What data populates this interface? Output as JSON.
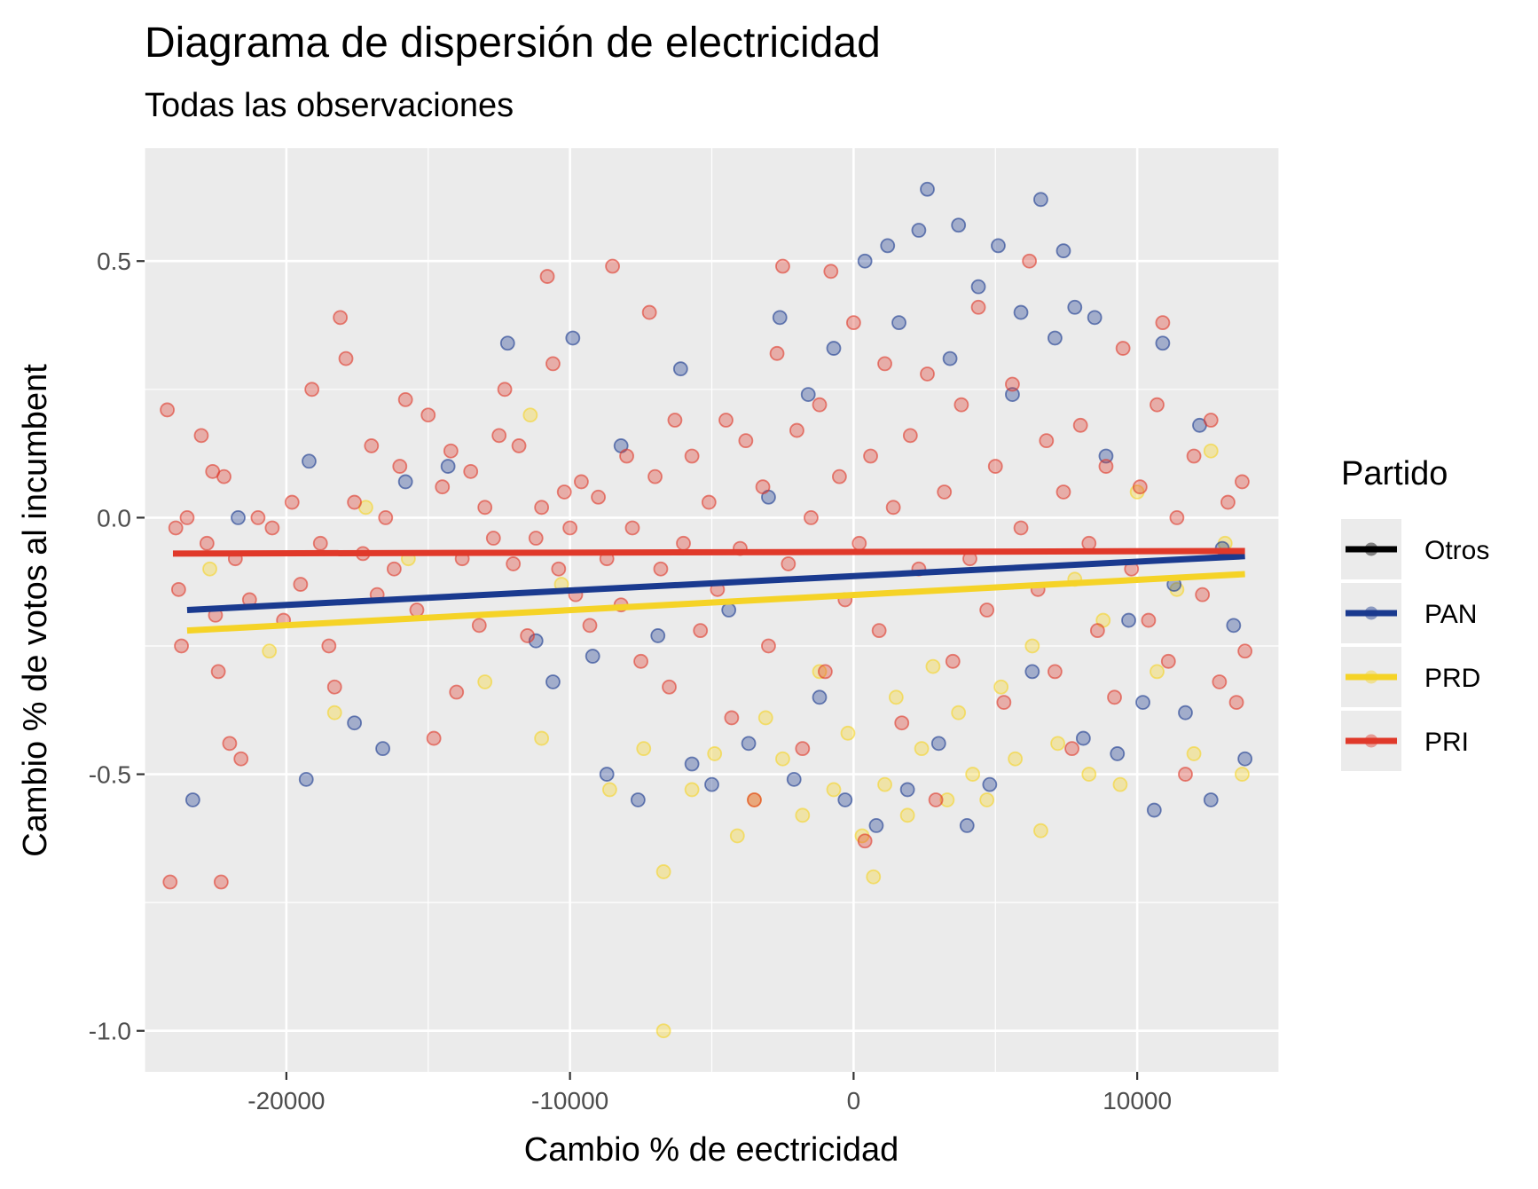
{
  "chart_data": {
    "type": "scatter",
    "title": "Diagrama de dispersión de electricidad",
    "subtitle": "Todas las observaciones",
    "xlabel": "Cambio % de eectricidad",
    "ylabel": "Cambio % de votos al incumbent",
    "xlim": [
      -25000,
      15000
    ],
    "ylim": [
      -1.08,
      0.72
    ],
    "x_ticks": [
      -20000,
      -10000,
      0,
      10000
    ],
    "x_tick_labels": [
      "-20000",
      "-10000",
      "0",
      "10000"
    ],
    "y_ticks": [
      -1.0,
      -0.5,
      0.0,
      0.5
    ],
    "y_tick_labels": [
      "-1.0",
      "-0.5",
      "0.0",
      "0.5"
    ],
    "grid": true,
    "legend_position": "right",
    "legend": {
      "title": "Partido",
      "entries": [
        "Otros",
        "PAN",
        "PRD",
        "PRI"
      ]
    },
    "colors": {
      "Otros": "#000000",
      "PAN": "#1a3a8f",
      "PRD": "#f5d327",
      "PRI": "#e0392a",
      "panel": "#ebebeb",
      "grid": "#ffffff"
    },
    "point_opacity": 0.35,
    "trend_lines": [
      {
        "series": "PAN",
        "x": [
          -23500,
          13800
        ],
        "y": [
          -0.18,
          -0.075
        ]
      },
      {
        "series": "PRD",
        "x": [
          -23500,
          13800
        ],
        "y": [
          -0.22,
          -0.11
        ]
      },
      {
        "series": "PRI",
        "x": [
          -24000,
          13800
        ],
        "y": [
          -0.07,
          -0.065
        ]
      }
    ],
    "series": [
      {
        "name": "PRI",
        "points": [
          [
            -24200,
            0.21
          ],
          [
            -23900,
            -0.02
          ],
          [
            -23800,
            -0.14
          ],
          [
            -23700,
            -0.25
          ],
          [
            -24100,
            -0.71
          ],
          [
            -23500,
            0.0
          ],
          [
            -23000,
            0.16
          ],
          [
            -22800,
            -0.05
          ],
          [
            -22600,
            0.09
          ],
          [
            -22500,
            -0.19
          ],
          [
            -22400,
            -0.3
          ],
          [
            -22300,
            -0.71
          ],
          [
            -22200,
            0.08
          ],
          [
            -22000,
            -0.44
          ],
          [
            -21800,
            -0.08
          ],
          [
            -21600,
            -0.47
          ],
          [
            -21300,
            -0.16
          ],
          [
            -21000,
            0.0
          ],
          [
            -20500,
            -0.02
          ],
          [
            -20100,
            -0.2
          ],
          [
            -19800,
            0.03
          ],
          [
            -19500,
            -0.13
          ],
          [
            -19100,
            0.25
          ],
          [
            -18800,
            -0.05
          ],
          [
            -18500,
            -0.25
          ],
          [
            -18300,
            -0.33
          ],
          [
            -18100,
            0.39
          ],
          [
            -17900,
            0.31
          ],
          [
            -17600,
            0.03
          ],
          [
            -17300,
            -0.07
          ],
          [
            -17000,
            0.14
          ],
          [
            -16800,
            -0.15
          ],
          [
            -16500,
            0.0
          ],
          [
            -16200,
            -0.1
          ],
          [
            -16000,
            0.1
          ],
          [
            -15800,
            0.23
          ],
          [
            -15400,
            -0.18
          ],
          [
            -15000,
            0.2
          ],
          [
            -14800,
            -0.43
          ],
          [
            -14500,
            0.06
          ],
          [
            -14200,
            0.13
          ],
          [
            -14000,
            -0.34
          ],
          [
            -13800,
            -0.08
          ],
          [
            -13500,
            0.09
          ],
          [
            -13200,
            -0.21
          ],
          [
            -13000,
            0.02
          ],
          [
            -12700,
            -0.04
          ],
          [
            -12500,
            0.16
          ],
          [
            -12300,
            0.25
          ],
          [
            -12000,
            -0.09
          ],
          [
            -11800,
            0.14
          ],
          [
            -11500,
            -0.23
          ],
          [
            -11200,
            -0.04
          ],
          [
            -11000,
            0.02
          ],
          [
            -10800,
            0.47
          ],
          [
            -10600,
            0.3
          ],
          [
            -10400,
            -0.1
          ],
          [
            -10200,
            0.05
          ],
          [
            -10000,
            -0.02
          ],
          [
            -9800,
            -0.15
          ],
          [
            -9600,
            0.07
          ],
          [
            -9300,
            -0.21
          ],
          [
            -9000,
            0.04
          ],
          [
            -8700,
            -0.08
          ],
          [
            -8500,
            0.49
          ],
          [
            -8200,
            -0.17
          ],
          [
            -8000,
            0.12
          ],
          [
            -7800,
            -0.02
          ],
          [
            -7500,
            -0.28
          ],
          [
            -7200,
            0.4
          ],
          [
            -7000,
            0.08
          ],
          [
            -6800,
            -0.1
          ],
          [
            -6500,
            -0.33
          ],
          [
            -6300,
            0.19
          ],
          [
            -6000,
            -0.05
          ],
          [
            -5700,
            0.12
          ],
          [
            -5400,
            -0.22
          ],
          [
            -5100,
            0.03
          ],
          [
            -4800,
            -0.14
          ],
          [
            -4500,
            0.19
          ],
          [
            -4300,
            -0.39
          ],
          [
            -4000,
            -0.06
          ],
          [
            -3800,
            0.15
          ],
          [
            -3500,
            -0.55
          ],
          [
            -3200,
            0.06
          ],
          [
            -3000,
            -0.25
          ],
          [
            -2700,
            0.32
          ],
          [
            -2500,
            0.49
          ],
          [
            -2300,
            -0.09
          ],
          [
            -2000,
            0.17
          ],
          [
            -1800,
            -0.45
          ],
          [
            -1500,
            0.0
          ],
          [
            -1200,
            0.22
          ],
          [
            -1000,
            -0.3
          ],
          [
            -800,
            0.48
          ],
          [
            -500,
            0.08
          ],
          [
            -300,
            -0.16
          ],
          [
            0,
            0.38
          ],
          [
            200,
            -0.05
          ],
          [
            400,
            -0.63
          ],
          [
            600,
            0.12
          ],
          [
            900,
            -0.22
          ],
          [
            1100,
            0.3
          ],
          [
            1400,
            0.02
          ],
          [
            1700,
            -0.4
          ],
          [
            2000,
            0.16
          ],
          [
            2300,
            -0.1
          ],
          [
            2600,
            0.28
          ],
          [
            2900,
            -0.55
          ],
          [
            3200,
            0.05
          ],
          [
            3500,
            -0.28
          ],
          [
            3800,
            0.22
          ],
          [
            4100,
            -0.08
          ],
          [
            4400,
            0.41
          ],
          [
            4700,
            -0.18
          ],
          [
            5000,
            0.1
          ],
          [
            5300,
            -0.36
          ],
          [
            5600,
            0.26
          ],
          [
            5900,
            -0.02
          ],
          [
            6200,
            0.5
          ],
          [
            6500,
            -0.14
          ],
          [
            6800,
            0.15
          ],
          [
            7100,
            -0.3
          ],
          [
            7400,
            0.05
          ],
          [
            7700,
            -0.45
          ],
          [
            8000,
            0.18
          ],
          [
            8300,
            -0.05
          ],
          [
            8600,
            -0.22
          ],
          [
            8900,
            0.1
          ],
          [
            9200,
            -0.35
          ],
          [
            9500,
            0.33
          ],
          [
            9800,
            -0.1
          ],
          [
            10100,
            0.06
          ],
          [
            10400,
            -0.2
          ],
          [
            10700,
            0.22
          ],
          [
            10900,
            0.38
          ],
          [
            11100,
            -0.28
          ],
          [
            11400,
            0.0
          ],
          [
            11700,
            -0.5
          ],
          [
            12000,
            0.12
          ],
          [
            12300,
            -0.15
          ],
          [
            12600,
            0.19
          ],
          [
            12900,
            -0.32
          ],
          [
            13200,
            0.03
          ],
          [
            13500,
            -0.36
          ],
          [
            13700,
            0.07
          ],
          [
            13800,
            -0.26
          ]
        ]
      },
      {
        "name": "PAN",
        "points": [
          [
            -23300,
            -0.55
          ],
          [
            -21700,
            0.0
          ],
          [
            -19200,
            0.11
          ],
          [
            -19300,
            -0.51
          ],
          [
            -17600,
            -0.4
          ],
          [
            -16600,
            -0.45
          ],
          [
            -15800,
            0.07
          ],
          [
            -14300,
            0.1
          ],
          [
            -12200,
            0.34
          ],
          [
            -11200,
            -0.24
          ],
          [
            -10600,
            -0.32
          ],
          [
            -9900,
            0.35
          ],
          [
            -9200,
            -0.27
          ],
          [
            -8700,
            -0.5
          ],
          [
            -8200,
            0.14
          ],
          [
            -7600,
            -0.55
          ],
          [
            -6900,
            -0.23
          ],
          [
            -6100,
            0.29
          ],
          [
            -5700,
            -0.48
          ],
          [
            -5000,
            -0.52
          ],
          [
            -4400,
            -0.18
          ],
          [
            -3700,
            -0.44
          ],
          [
            -3000,
            0.04
          ],
          [
            -2600,
            0.39
          ],
          [
            -2100,
            -0.51
          ],
          [
            -1600,
            0.24
          ],
          [
            -1200,
            -0.35
          ],
          [
            -700,
            0.33
          ],
          [
            -300,
            -0.55
          ],
          [
            400,
            0.5
          ],
          [
            800,
            -0.6
          ],
          [
            1200,
            0.53
          ],
          [
            1600,
            0.38
          ],
          [
            1900,
            -0.53
          ],
          [
            2300,
            0.56
          ],
          [
            2600,
            0.64
          ],
          [
            3000,
            -0.44
          ],
          [
            3400,
            0.31
          ],
          [
            3700,
            0.57
          ],
          [
            4000,
            -0.6
          ],
          [
            4400,
            0.45
          ],
          [
            4800,
            -0.52
          ],
          [
            5100,
            0.53
          ],
          [
            5600,
            0.24
          ],
          [
            5900,
            0.4
          ],
          [
            6300,
            -0.3
          ],
          [
            6600,
            0.62
          ],
          [
            7100,
            0.35
          ],
          [
            7400,
            0.52
          ],
          [
            7800,
            0.41
          ],
          [
            8100,
            -0.43
          ],
          [
            8500,
            0.39
          ],
          [
            8900,
            0.12
          ],
          [
            9300,
            -0.46
          ],
          [
            9700,
            -0.2
          ],
          [
            10200,
            -0.36
          ],
          [
            10600,
            -0.57
          ],
          [
            10900,
            0.34
          ],
          [
            11300,
            -0.13
          ],
          [
            11700,
            -0.38
          ],
          [
            12200,
            0.18
          ],
          [
            12600,
            -0.55
          ],
          [
            13000,
            -0.06
          ],
          [
            13400,
            -0.21
          ],
          [
            13800,
            -0.47
          ]
        ]
      },
      {
        "name": "PRD",
        "points": [
          [
            -22700,
            -0.1
          ],
          [
            -20600,
            -0.26
          ],
          [
            -18300,
            -0.38
          ],
          [
            -17200,
            0.02
          ],
          [
            -15700,
            -0.08
          ],
          [
            -13000,
            -0.32
          ],
          [
            -11400,
            0.2
          ],
          [
            -11000,
            -0.43
          ],
          [
            -10300,
            -0.13
          ],
          [
            -8600,
            -0.53
          ],
          [
            -7400,
            -0.45
          ],
          [
            -6700,
            -1.0
          ],
          [
            -6700,
            -0.69
          ],
          [
            -5700,
            -0.53
          ],
          [
            -4900,
            -0.46
          ],
          [
            -4100,
            -0.62
          ],
          [
            -3500,
            -0.55
          ],
          [
            -3100,
            -0.39
          ],
          [
            -2500,
            -0.47
          ],
          [
            -1800,
            -0.58
          ],
          [
            -1200,
            -0.3
          ],
          [
            -700,
            -0.53
          ],
          [
            -200,
            -0.42
          ],
          [
            300,
            -0.62
          ],
          [
            700,
            -0.7
          ],
          [
            1100,
            -0.52
          ],
          [
            1500,
            -0.35
          ],
          [
            1900,
            -0.58
          ],
          [
            2400,
            -0.45
          ],
          [
            2800,
            -0.29
          ],
          [
            3300,
            -0.55
          ],
          [
            3700,
            -0.38
          ],
          [
            4200,
            -0.5
          ],
          [
            4700,
            -0.55
          ],
          [
            5200,
            -0.33
          ],
          [
            5700,
            -0.47
          ],
          [
            6300,
            -0.25
          ],
          [
            6600,
            -0.61
          ],
          [
            7200,
            -0.44
          ],
          [
            7800,
            -0.12
          ],
          [
            8300,
            -0.5
          ],
          [
            8800,
            -0.2
          ],
          [
            9400,
            -0.52
          ],
          [
            10000,
            0.05
          ],
          [
            10700,
            -0.3
          ],
          [
            11400,
            -0.14
          ],
          [
            12000,
            -0.46
          ],
          [
            12600,
            0.13
          ],
          [
            13100,
            -0.05
          ],
          [
            13700,
            -0.5
          ]
        ]
      },
      {
        "name": "Otros",
        "points": []
      }
    ]
  }
}
